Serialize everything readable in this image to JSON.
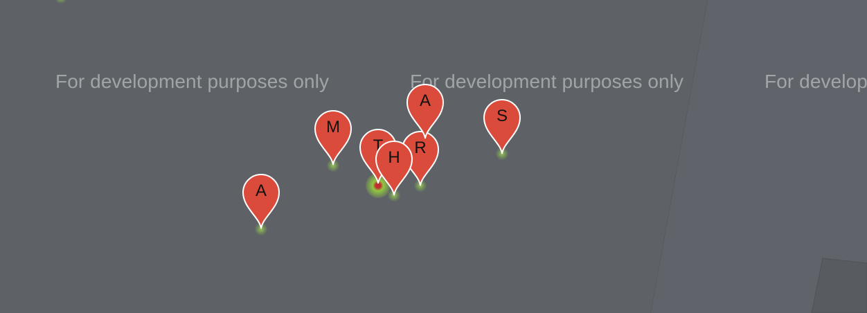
{
  "map": {
    "watermark_text": "For development purposes only",
    "colors": {
      "background": "#5e6266",
      "marker_fill": "#db4b3c",
      "marker_stroke": "#ffffff",
      "glow": "#a6dc5a"
    }
  },
  "markers": [
    {
      "label": "M"
    },
    {
      "label": "A"
    },
    {
      "label": "T"
    },
    {
      "label": "H"
    },
    {
      "label": "R"
    },
    {
      "label": "A"
    },
    {
      "label": "S"
    }
  ]
}
